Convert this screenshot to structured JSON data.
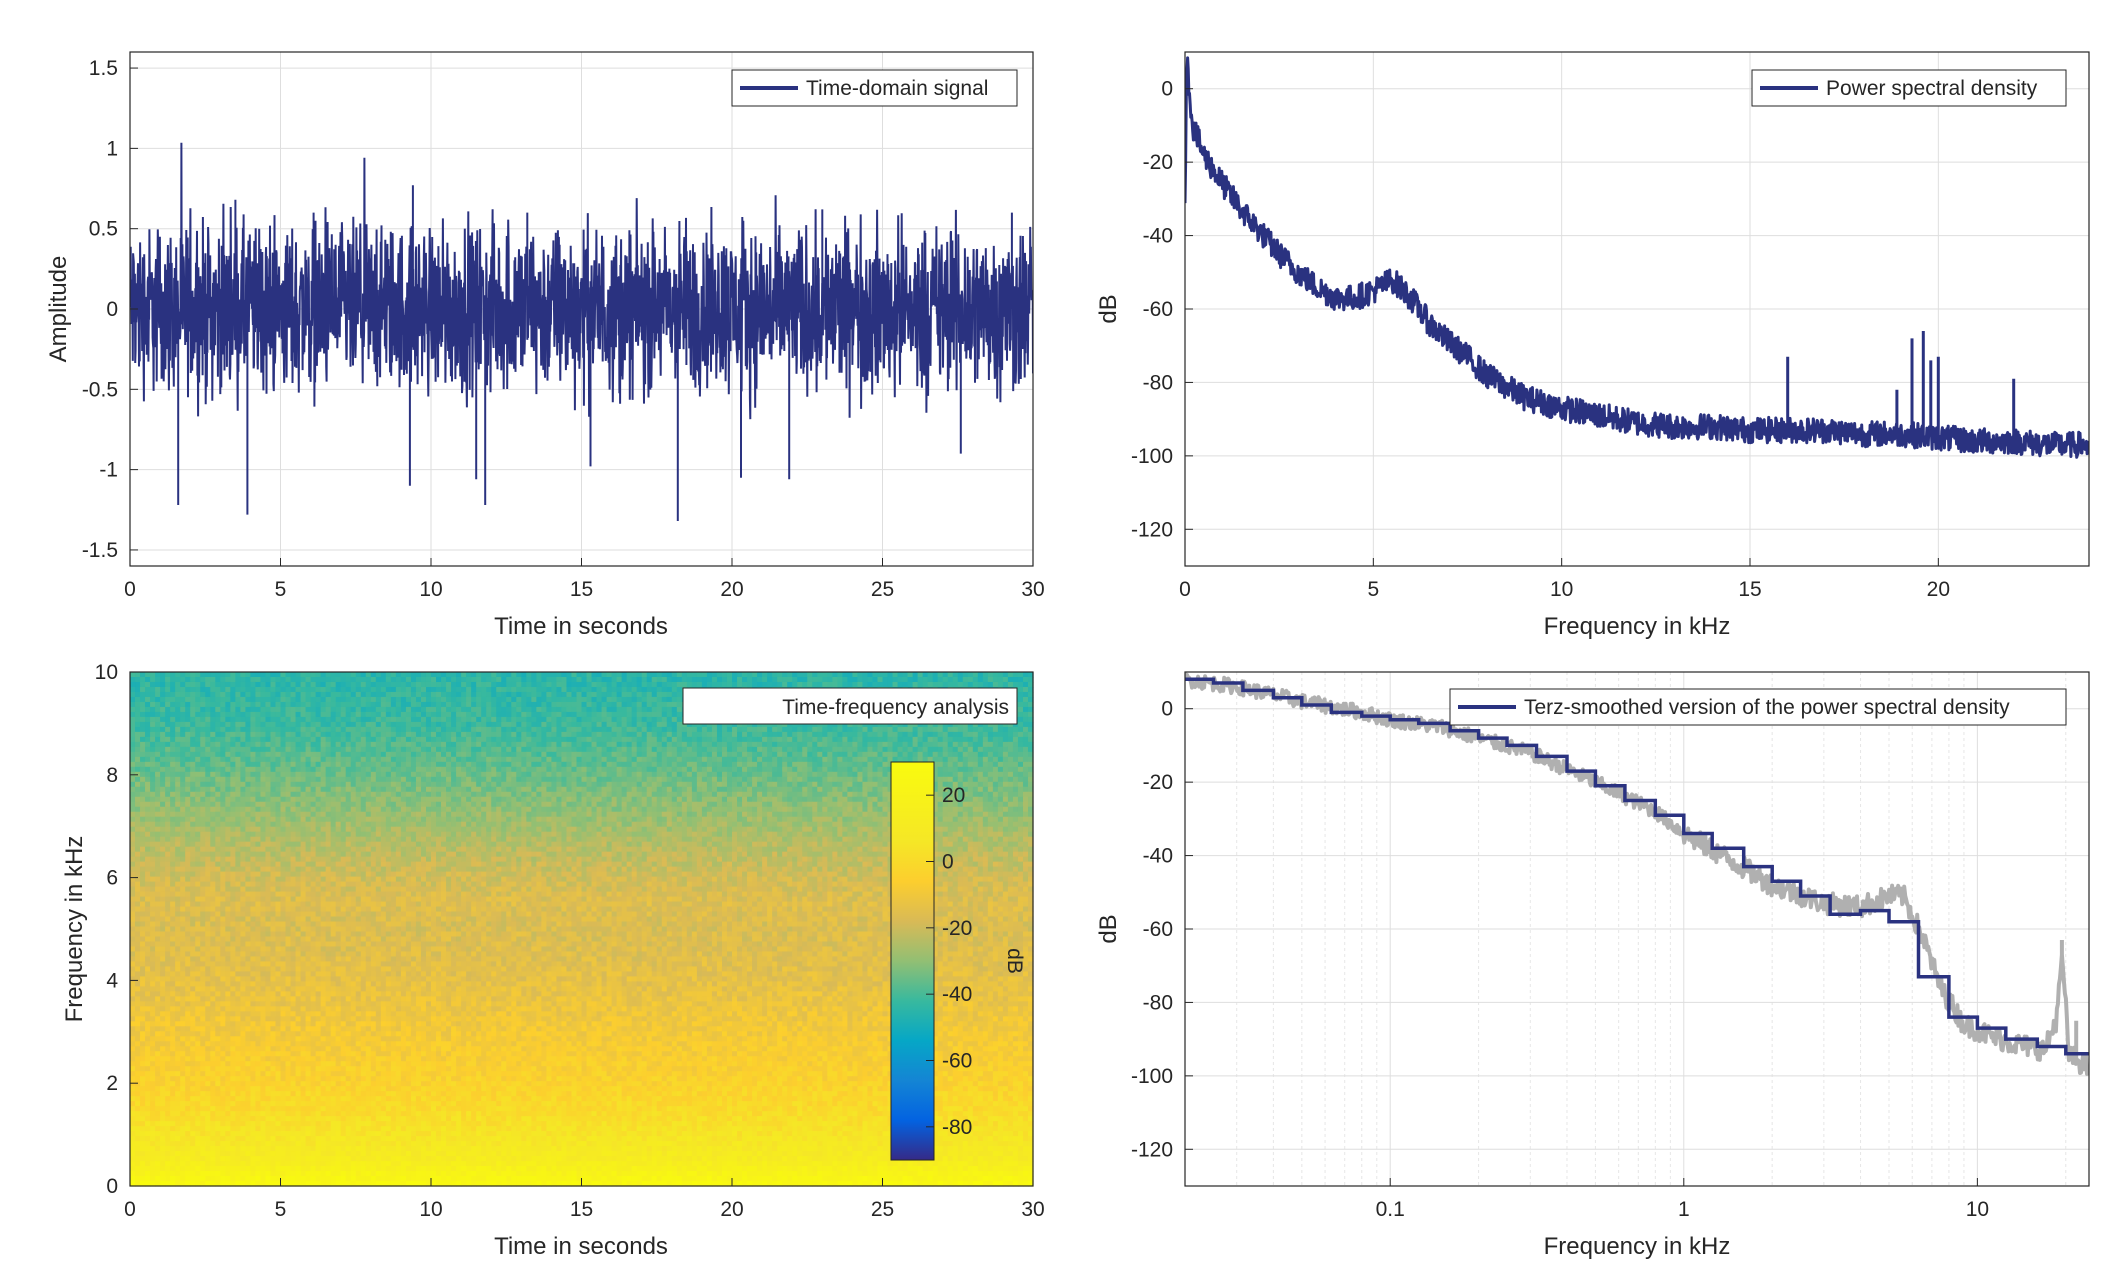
{
  "chart_data": [
    {
      "id": "time-signal",
      "type": "line",
      "xlabel": "Time in seconds",
      "ylabel": "Amplitude",
      "xlim": [
        0,
        30
      ],
      "ylim": [
        -1.6,
        1.6
      ],
      "xticks": [
        0,
        5,
        10,
        15,
        20,
        25,
        30
      ],
      "xtick_labels": [
        "0",
        "5",
        "10",
        "15",
        "20",
        "25",
        "30"
      ],
      "yticks": [
        -1.5,
        -1,
        -0.5,
        0,
        0.5,
        1,
        1.5
      ],
      "ytick_labels": [
        "-1.5",
        "-1",
        "-0.5",
        "0",
        "0.5",
        "1",
        "1.5"
      ],
      "grid": true,
      "legend": "top-right",
      "series": [
        {
          "name": "Time-domain signal",
          "color": "#2a3280",
          "spikes": [
            [
              1.6,
              -1.22
            ],
            [
              3.9,
              -1.28
            ],
            [
              9.4,
              0.77
            ],
            [
              9.3,
              -1.1
            ],
            [
              11.5,
              -1.06
            ],
            [
              11.8,
              -1.22
            ],
            [
              15.3,
              -0.98
            ],
            [
              18.2,
              -1.32
            ],
            [
              20.3,
              -1.05
            ],
            [
              21.9,
              -1.06
            ],
            [
              27.6,
              -0.9
            ],
            [
              3.5,
              0.68
            ],
            [
              6.1,
              0.6
            ],
            [
              13.2,
              0.6
            ],
            [
              23.0,
              0.62
            ],
            [
              29.3,
              0.6
            ]
          ]
        }
      ]
    },
    {
      "id": "psd",
      "type": "line",
      "xlabel": "Frequency in kHz",
      "ylabel": "dB",
      "xlim": [
        0,
        24
      ],
      "ylim": [
        -130,
        10
      ],
      "xticks": [
        0,
        5,
        10,
        15,
        20
      ],
      "xtick_labels": [
        "0",
        "5",
        "10",
        "15",
        "20"
      ],
      "yticks": [
        -120,
        -100,
        -80,
        -60,
        -40,
        -20,
        0
      ],
      "ytick_labels": [
        "-120",
        "-100",
        "-80",
        "-60",
        "-40",
        "-20",
        "0"
      ],
      "grid": true,
      "legend": "top-right",
      "series": [
        {
          "name": "Power spectral density",
          "color": "#2a3280",
          "x": [
            0,
            0.05,
            0.2,
            0.5,
            1,
            1.5,
            2,
            2.5,
            3,
            3.5,
            4,
            4.5,
            5,
            5.5,
            6,
            6.5,
            7,
            7.5,
            8,
            9,
            10,
            11,
            12,
            13,
            14,
            15,
            16,
            17,
            18,
            19,
            20,
            21,
            22,
            23,
            24
          ],
          "y": [
            -30,
            8,
            -10,
            -18,
            -26,
            -33,
            -39,
            -45,
            -50,
            -54,
            -57,
            -57,
            -55,
            -52,
            -57,
            -64,
            -69,
            -73,
            -78,
            -84,
            -87,
            -89,
            -91,
            -92,
            -92,
            -93,
            -93,
            -93,
            -94,
            -94,
            -95,
            -96,
            -96,
            -97,
            -97
          ],
          "peaks": [
            [
              16.0,
              -73
            ],
            [
              18.9,
              -82
            ],
            [
              19.3,
              -68
            ],
            [
              19.6,
              -66
            ],
            [
              19.8,
              -74
            ],
            [
              20.0,
              -73
            ],
            [
              22.0,
              -79
            ]
          ]
        }
      ]
    },
    {
      "id": "spectrogram",
      "type": "heatmap",
      "xlabel": "Time in seconds",
      "ylabel": "Frequency in kHz",
      "xlim": [
        0,
        30
      ],
      "ylim": [
        0,
        10
      ],
      "xticks": [
        0,
        5,
        10,
        15,
        20,
        25,
        30
      ],
      "xtick_labels": [
        "0",
        "5",
        "10",
        "15",
        "20",
        "25",
        "30"
      ],
      "yticks": [
        0,
        2,
        4,
        6,
        8,
        10
      ],
      "ytick_labels": [
        "0",
        "2",
        "4",
        "6",
        "8",
        "10"
      ],
      "legend": "top-right",
      "legend_label": "Time-frequency analysis",
      "colorbar": {
        "label": "dB",
        "range": [
          -90,
          30
        ],
        "ticks": [
          20,
          0,
          -20,
          -40,
          -60,
          -80
        ],
        "tick_labels": [
          "20",
          "0",
          "-20",
          "-40",
          "-60",
          "-80"
        ],
        "colormap": "parula"
      },
      "freq_profile_db": [
        [
          0,
          28
        ],
        [
          0.5,
          12
        ],
        [
          1,
          5
        ],
        [
          1.5,
          0
        ],
        [
          2,
          -4
        ],
        [
          3,
          -9
        ],
        [
          4,
          -14
        ],
        [
          5,
          -17
        ],
        [
          5.5,
          -16
        ],
        [
          6,
          -19
        ],
        [
          7,
          -27
        ],
        [
          8,
          -35
        ],
        [
          9,
          -42
        ],
        [
          10,
          -45
        ]
      ]
    },
    {
      "id": "terz-psd",
      "type": "line",
      "xlabel": "Frequency in kHz",
      "ylabel": "dB",
      "xscale": "log",
      "xlim": [
        0.02,
        24
      ],
      "ylim": [
        -130,
        10
      ],
      "xticks": [
        0.1,
        1,
        10
      ],
      "xtick_labels": [
        "0.1",
        "1",
        "10"
      ],
      "yticks": [
        -120,
        -100,
        -80,
        -60,
        -40,
        -20,
        0
      ],
      "ytick_labels": [
        "-120",
        "-100",
        "-80",
        "-60",
        "-40",
        "-20",
        "0"
      ],
      "grid": true,
      "legend": "top-right",
      "series": [
        {
          "name": "Terz-smoothed version of the power spectral density",
          "color": "#2a3280",
          "step_x": [
            0.02,
            0.025,
            0.0315,
            0.04,
            0.05,
            0.063,
            0.08,
            0.1,
            0.125,
            0.16,
            0.2,
            0.25,
            0.315,
            0.4,
            0.5,
            0.63,
            0.8,
            1.0,
            1.25,
            1.6,
            2.0,
            2.5,
            3.15,
            4.0,
            5.0,
            6.3,
            8.0,
            10.0,
            12.5,
            16.0,
            20.0,
            24
          ],
          "step_y": [
            8,
            7,
            5,
            3,
            1,
            -1,
            -2,
            -3,
            -4,
            -6,
            -8,
            -10,
            -13,
            -17,
            -21,
            -25,
            -29,
            -34,
            -38,
            -43,
            -47,
            -51,
            -56,
            -55,
            -58,
            -73,
            -84,
            -87,
            -90,
            -92,
            -94
          ]
        },
        {
          "name": "",
          "color": "#b0b0b0",
          "x": [
            0.02,
            0.03,
            0.05,
            0.08,
            0.1,
            0.15,
            0.2,
            0.3,
            0.5,
            0.8,
            1,
            1.5,
            2,
            3,
            4,
            5,
            5.6,
            6.5,
            7.5,
            9,
            11,
            13,
            15,
            17,
            18.5,
            19.5,
            20.5,
            22,
            24
          ],
          "y": [
            8,
            6,
            2,
            -1,
            -3,
            -5,
            -8,
            -12,
            -20,
            -28,
            -34,
            -42,
            -48,
            -53,
            -54,
            -51,
            -51,
            -62,
            -76,
            -86,
            -89,
            -91,
            -92,
            -93,
            -85,
            -68,
            -94,
            -96,
            -98
          ],
          "peaks": [
            [
              19.4,
              -63
            ],
            [
              21.7,
              -85
            ]
          ]
        }
      ]
    }
  ]
}
